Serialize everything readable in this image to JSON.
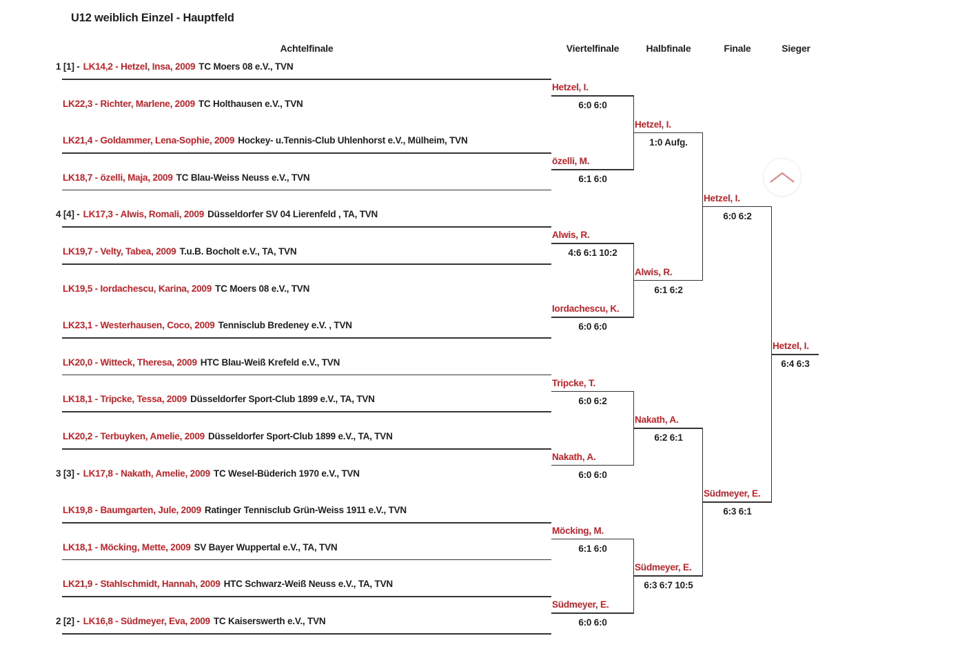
{
  "title": "U12 weiblich Einzel - Hauptfeld",
  "columns": [
    "Achtelfinale",
    "Viertelfinale",
    "Halbfinale",
    "Finale",
    "Sieger"
  ],
  "round1": [
    {
      "prefix": "1 [1] -",
      "entry": "LK14,2 - Hetzel, Insa, 2009",
      "club": "TC Moers 08 e.V., TVN",
      "underline": true
    },
    {
      "prefix": "",
      "entry": "LK22,3 - Richter, Marlene, 2009",
      "club": "TC Holthausen e.V., TVN",
      "underline": false
    },
    {
      "prefix": "",
      "entry": "LK21,4 - Goldammer, Lena-Sophie, 2009",
      "club": "Hockey- u.Tennis-Club Uhlenhorst e.V., Mülheim, TVN",
      "underline": true
    },
    {
      "prefix": "",
      "entry": "LK18,7 - özelli, Maja, 2009",
      "club": "TC Blau-Weiss Neuss e.V., TVN",
      "underline": true
    },
    {
      "prefix": "4 [4] -",
      "entry": "LK17,3 - Alwis, Romali, 2009",
      "club": "Düsseldorfer SV 04 Lierenfeld , TA, TVN",
      "underline": true
    },
    {
      "prefix": "",
      "entry": "LK19,7 - Velty, Tabea, 2009",
      "club": "T.u.B. Bocholt e.V., TA, TVN",
      "underline": true
    },
    {
      "prefix": "",
      "entry": "LK19,5 - Iordachescu, Karina, 2009",
      "club": "TC Moers 08 e.V., TVN",
      "underline": false
    },
    {
      "prefix": "",
      "entry": "LK23,1 - Westerhausen, Coco, 2009",
      "club": "Tennisclub Bredeney e.V. , TVN",
      "underline": true
    },
    {
      "prefix": "",
      "entry": "LK20,0 - Witteck, Theresa, 2009",
      "club": "HTC Blau-Weiß Krefeld e.V., TVN",
      "underline": true
    },
    {
      "prefix": "",
      "entry": "LK18,1 - Tripcke, Tessa, 2009",
      "club": "Düsseldorfer Sport-Club 1899 e.V., TA, TVN",
      "underline": true
    },
    {
      "prefix": "",
      "entry": "LK20,2 - Terbuyken, Amelie, 2009",
      "club": "Düsseldorfer Sport-Club 1899 e.V., TA, TVN",
      "underline": true
    },
    {
      "prefix": "3 [3] -",
      "entry": "LK17,8 - Nakath, Amelie, 2009",
      "club": "TC Wesel-Büderich 1970 e.V., TVN",
      "underline": false
    },
    {
      "prefix": "",
      "entry": "LK19,8 - Baumgarten, Jule, 2009",
      "club": "Ratinger Tennisclub Grün-Weiss 1911 e.V., TVN",
      "underline": true
    },
    {
      "prefix": "",
      "entry": "LK18,1 - Möcking, Mette, 2009",
      "club": "SV Bayer Wuppertal e.V., TA, TVN",
      "underline": true
    },
    {
      "prefix": "",
      "entry": "LK21,9 - Stahlschmidt, Hannah, 2009",
      "club": "HTC Schwarz-Weiß Neuss e.V., TA, TVN",
      "underline": true
    },
    {
      "prefix": "2 [2] -",
      "entry": "LK16,8 - Südmeyer, Eva, 2009",
      "club": "TC Kaiserswerth e.V., TVN",
      "underline": true
    }
  ],
  "viertelfinale": [
    {
      "name": "Hetzel, I.",
      "score": "6:0 6:0"
    },
    {
      "name": "özelli, M.",
      "score": "6:1 6:0"
    },
    {
      "name": "Alwis, R.",
      "score": "4:6 6:1 10:2"
    },
    {
      "name": "Iordachescu, K.",
      "score": "6:0 6:0"
    },
    {
      "name": "Tripcke, T.",
      "score": "6:0 6:2"
    },
    {
      "name": "Nakath, A.",
      "score": "6:0 6:0"
    },
    {
      "name": "Möcking, M.",
      "score": "6:1 6:0"
    },
    {
      "name": "Südmeyer, E.",
      "score": "6:0 6:0"
    }
  ],
  "halbfinale": [
    {
      "name": "Hetzel, I.",
      "score": "1:0 Aufg."
    },
    {
      "name": "Alwis, R.",
      "score": "6:1 6:2"
    },
    {
      "name": "Nakath, A.",
      "score": "6:2 6:1"
    },
    {
      "name": "Südmeyer, E.",
      "score": "6:3 6:7 10:5"
    }
  ],
  "finale": [
    {
      "name": "Hetzel, I.",
      "score": "6:0 6:2"
    },
    {
      "name": "Südmeyer, E.",
      "score": "6:3 6:1"
    }
  ],
  "sieger": {
    "name": "Hetzel, I.",
    "score": "6:4 6:3"
  },
  "colors": {
    "accent_red": "#c42127",
    "text": "#1f1f1f",
    "line": "#333333"
  },
  "scroll_top_button": {
    "icon": "chevron-up-icon"
  }
}
